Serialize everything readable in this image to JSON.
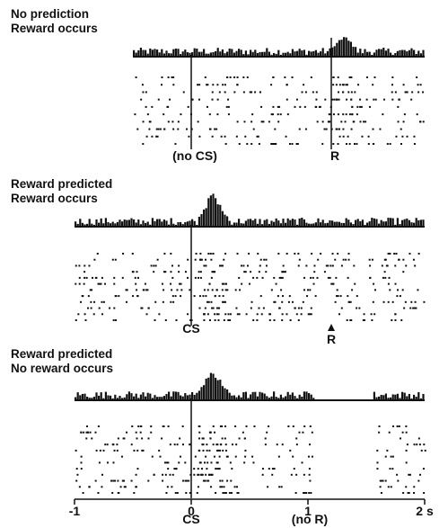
{
  "chart_data": {
    "type": "raster",
    "x_unit": "s",
    "xlim": [
      -1,
      2
    ],
    "ink": "#111111",
    "panels": [
      {
        "title": [
          "No prediction",
          "Reward occurs"
        ],
        "markers": [
          {
            "x": 0,
            "label": "(no CS)"
          },
          {
            "x": 1.2,
            "label": "R"
          }
        ],
        "segment": [
          -0.5,
          2
        ],
        "trial_count": 10,
        "background_rate_hz": 10,
        "response": {
          "x_start": 1.18,
          "x_end": 1.42,
          "peak": 1.0
        }
      },
      {
        "title": [
          "Reward predicted",
          "Reward occurs"
        ],
        "markers": [
          {
            "x": 0,
            "label": "CS"
          },
          {
            "x": 1.2,
            "label": "R",
            "arrow": true
          }
        ],
        "segment": [
          -1,
          2
        ],
        "trial_count": 12,
        "background_rate_hz": 10,
        "response": {
          "x_start": 0.05,
          "x_end": 0.3,
          "peak": 1.0
        }
      },
      {
        "title": [
          "Reward predicted",
          "No reward occurs"
        ],
        "markers": [
          {
            "x": 0,
            "label": "CS"
          },
          {
            "x": 1.0,
            "label": "(no R)"
          }
        ],
        "segment": [
          -1,
          2
        ],
        "trial_count": 12,
        "background_rate_hz": 10,
        "response": {
          "x_start": 0.05,
          "x_end": 0.3,
          "peak": 1.0
        },
        "pause": {
          "x_start": 1.05,
          "x_end": 1.55
        }
      }
    ],
    "x_ticks": [
      {
        "v": -1,
        "label": "-1"
      },
      {
        "v": 0,
        "label": "0"
      },
      {
        "v": 1,
        "label": "1"
      },
      {
        "v": 2,
        "label": "2 s"
      }
    ]
  }
}
